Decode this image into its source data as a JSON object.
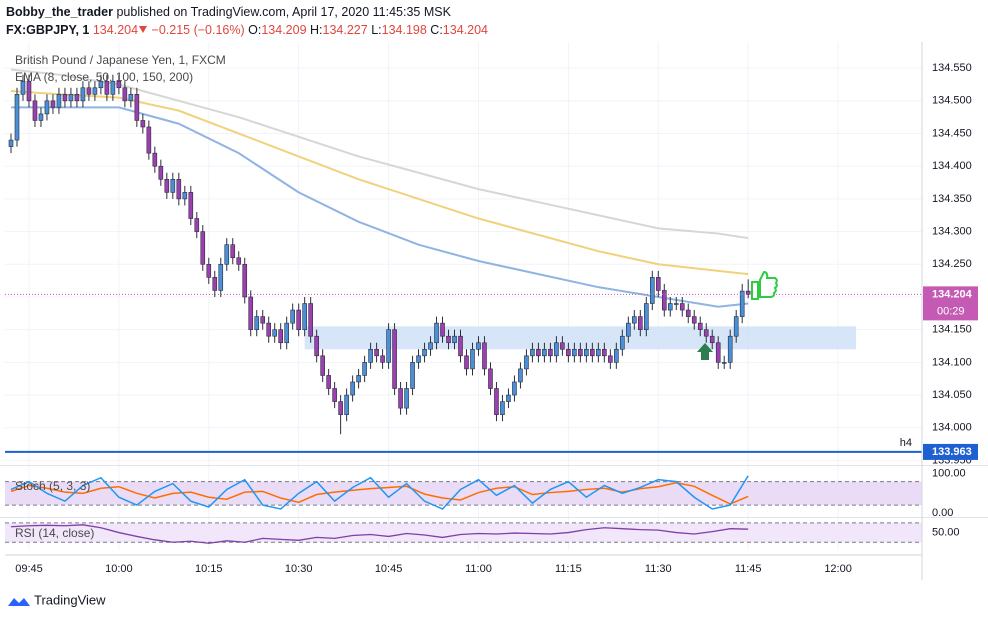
{
  "header": {
    "author": "Bobby_the_trader",
    "published": "published on TradingView.com, April 17, 2020 11:45:35 MSK",
    "symbol": "FX:GBPJPY, 1",
    "change": "−0.215 (−0.16%)",
    "o_label": "O:",
    "h_label": "H:",
    "l_label": "L:",
    "c_label": "C:"
  },
  "footer": {
    "brand": "TradingView"
  },
  "chart_data": {
    "type": "candlestick",
    "title": "British Pound / Japanese Yen, 1, FXCM",
    "indicator_label": "EMA (8, close, 50, 100, 150, 200)",
    "up_color": "#4a8fd8",
    "down_color": "#9c3fb0",
    "wick_color": "#2a2e39",
    "x": [
      582,
      583,
      584,
      585,
      586,
      587,
      588,
      589,
      590,
      591,
      592,
      593,
      594,
      595,
      596,
      597,
      598,
      599,
      600,
      601,
      602,
      603,
      604,
      605,
      606,
      607,
      608,
      609,
      610,
      611,
      612,
      613,
      614,
      615,
      616,
      617,
      618,
      619,
      620,
      621,
      622,
      623,
      624,
      625,
      626,
      627,
      628,
      629,
      630,
      631,
      632,
      633,
      634,
      635,
      636,
      637,
      638,
      639,
      640,
      641,
      642,
      643,
      644,
      645,
      646,
      647,
      648,
      649,
      650,
      651,
      652,
      653,
      654,
      655,
      656,
      657,
      658,
      659,
      660,
      661,
      662,
      663,
      664,
      665,
      666,
      667,
      668,
      669,
      670,
      671,
      672,
      673,
      674,
      675,
      676,
      677,
      678,
      679,
      680,
      681,
      682,
      683,
      684,
      685,
      686,
      687,
      688,
      689,
      690,
      691,
      692,
      693,
      694,
      695,
      696,
      697,
      698,
      699,
      700,
      701,
      702,
      703,
      704,
      705
    ],
    "open": [
      134.43,
      134.44,
      134.51,
      134.53,
      134.5,
      134.47,
      134.48,
      134.5,
      134.49,
      134.51,
      134.5,
      134.51,
      134.5,
      134.52,
      134.51,
      134.52,
      134.53,
      134.51,
      134.53,
      134.52,
      134.5,
      134.51,
      134.47,
      134.46,
      134.42,
      134.4,
      134.38,
      134.36,
      134.38,
      134.35,
      134.36,
      134.32,
      134.3,
      134.25,
      134.23,
      134.21,
      134.25,
      134.28,
      134.26,
      134.25,
      134.2,
      134.15,
      134.17,
      134.16,
      134.14,
      134.15,
      134.13,
      134.16,
      134.18,
      134.15,
      134.19,
      134.14,
      134.11,
      134.08,
      134.06,
      134.04,
      134.02,
      134.05,
      134.07,
      134.08,
      134.1,
      134.12,
      134.11,
      134.1,
      134.15,
      134.06,
      134.03,
      134.06,
      134.1,
      134.11,
      134.12,
      134.13,
      134.16,
      134.14,
      134.13,
      134.14,
      134.11,
      134.09,
      134.12,
      134.13,
      134.09,
      134.06,
      134.02,
      134.04,
      134.05,
      134.07,
      134.09,
      134.11,
      134.12,
      134.11,
      134.12,
      134.11,
      134.13,
      134.12,
      134.11,
      134.12,
      134.11,
      134.12,
      134.11,
      134.12,
      134.11,
      134.1,
      134.12,
      134.14,
      134.16,
      134.17,
      134.15,
      134.19,
      134.23,
      134.21,
      134.18,
      134.19,
      134.19,
      134.18,
      134.17,
      134.16,
      134.15,
      134.14,
      134.13,
      134.1,
      134.1,
      134.14,
      134.17,
      134.209
    ],
    "high": [
      134.45,
      134.52,
      134.54,
      134.54,
      134.51,
      134.49,
      134.51,
      134.51,
      134.52,
      134.52,
      134.52,
      134.52,
      134.53,
      134.53,
      134.53,
      134.54,
      134.54,
      134.54,
      134.54,
      134.53,
      134.52,
      134.52,
      134.48,
      134.47,
      134.43,
      134.41,
      134.39,
      134.39,
      134.39,
      134.37,
      134.37,
      134.33,
      134.31,
      134.26,
      134.24,
      134.26,
      134.29,
      134.29,
      134.27,
      134.26,
      134.21,
      134.18,
      134.18,
      134.17,
      134.16,
      134.16,
      134.17,
      134.19,
      134.19,
      134.2,
      134.2,
      134.15,
      134.12,
      134.09,
      134.07,
      134.05,
      134.06,
      134.08,
      134.09,
      134.11,
      134.13,
      134.13,
      134.12,
      134.16,
      134.16,
      134.07,
      134.07,
      134.11,
      134.12,
      134.13,
      134.14,
      134.17,
      134.17,
      134.15,
      134.15,
      134.15,
      134.12,
      134.13,
      134.14,
      134.14,
      134.1,
      134.07,
      134.05,
      134.06,
      134.08,
      134.1,
      134.12,
      134.13,
      134.13,
      134.13,
      134.13,
      134.14,
      134.14,
      134.13,
      134.13,
      134.13,
      134.13,
      134.13,
      134.13,
      134.13,
      134.12,
      134.13,
      134.15,
      134.17,
      134.18,
      134.18,
      134.2,
      134.24,
      134.24,
      134.22,
      134.2,
      134.2,
      134.2,
      134.19,
      134.18,
      134.17,
      134.16,
      134.15,
      134.14,
      134.11,
      134.15,
      134.18,
      134.22,
      134.227
    ],
    "low": [
      134.42,
      134.43,
      134.5,
      134.49,
      134.46,
      134.46,
      134.47,
      134.48,
      134.48,
      134.49,
      134.49,
      134.49,
      134.49,
      134.5,
      134.5,
      134.51,
      134.5,
      134.5,
      134.51,
      134.49,
      134.49,
      134.46,
      134.45,
      134.41,
      134.39,
      134.37,
      134.35,
      134.35,
      134.34,
      134.34,
      134.31,
      134.29,
      134.24,
      134.22,
      134.2,
      134.2,
      134.24,
      134.25,
      134.24,
      134.19,
      134.14,
      134.14,
      134.15,
      134.13,
      134.13,
      134.12,
      134.12,
      134.15,
      134.14,
      134.14,
      134.13,
      134.1,
      134.07,
      134.05,
      134.03,
      133.99,
      134.01,
      134.04,
      134.06,
      134.07,
      134.09,
      134.1,
      134.09,
      134.09,
      134.05,
      134.02,
      134.02,
      134.05,
      134.09,
      134.1,
      134.11,
      134.12,
      134.13,
      134.12,
      134.12,
      134.1,
      134.08,
      134.08,
      134.11,
      134.08,
      134.05,
      134.01,
      134.01,
      134.03,
      134.04,
      134.06,
      134.08,
      134.1,
      134.1,
      134.1,
      134.1,
      134.1,
      134.11,
      134.1,
      134.1,
      134.1,
      134.1,
      134.1,
      134.1,
      134.1,
      134.09,
      134.09,
      134.11,
      134.13,
      134.15,
      134.14,
      134.14,
      134.18,
      134.2,
      134.17,
      134.17,
      134.18,
      134.17,
      134.16,
      134.15,
      134.14,
      134.13,
      134.12,
      134.09,
      134.09,
      134.09,
      134.13,
      134.16,
      134.198
    ],
    "close": [
      134.44,
      134.51,
      134.53,
      134.5,
      134.47,
      134.48,
      134.5,
      134.49,
      134.51,
      134.5,
      134.51,
      134.5,
      134.52,
      134.51,
      134.52,
      134.53,
      134.51,
      134.53,
      134.52,
      134.5,
      134.51,
      134.47,
      134.46,
      134.42,
      134.4,
      134.38,
      134.36,
      134.38,
      134.35,
      134.36,
      134.32,
      134.3,
      134.25,
      134.23,
      134.21,
      134.25,
      134.28,
      134.26,
      134.25,
      134.2,
      134.15,
      134.17,
      134.16,
      134.14,
      134.15,
      134.13,
      134.16,
      134.18,
      134.15,
      134.19,
      134.14,
      134.11,
      134.08,
      134.06,
      134.04,
      134.02,
      134.05,
      134.07,
      134.08,
      134.1,
      134.12,
      134.11,
      134.1,
      134.15,
      134.06,
      134.03,
      134.06,
      134.1,
      134.11,
      134.12,
      134.13,
      134.16,
      134.14,
      134.13,
      134.14,
      134.11,
      134.09,
      134.12,
      134.13,
      134.09,
      134.06,
      134.02,
      134.04,
      134.05,
      134.07,
      134.09,
      134.11,
      134.12,
      134.11,
      134.12,
      134.11,
      134.13,
      134.12,
      134.11,
      134.12,
      134.11,
      134.12,
      134.11,
      134.12,
      134.11,
      134.1,
      134.12,
      134.14,
      134.16,
      134.17,
      134.15,
      134.19,
      134.23,
      134.21,
      134.18,
      134.19,
      134.19,
      134.18,
      134.17,
      134.16,
      134.15,
      134.14,
      134.13,
      134.1,
      134.1,
      134.14,
      134.17,
      134.209,
      134.204
    ],
    "xlim": [
      581,
      734
    ],
    "xticks": [
      {
        "value": 585,
        "label": "09:45"
      },
      {
        "value": 600,
        "label": "10:00"
      },
      {
        "value": 615,
        "label": "10:15"
      },
      {
        "value": 630,
        "label": "10:30"
      },
      {
        "value": 645,
        "label": "10:45"
      },
      {
        "value": 660,
        "label": "11:00"
      },
      {
        "value": 675,
        "label": "11:15"
      },
      {
        "value": 690,
        "label": "11:30"
      },
      {
        "value": 705,
        "label": "11:45"
      },
      {
        "value": 720,
        "label": "12:00"
      }
    ],
    "ylim": [
      133.943,
      134.59
    ],
    "yticks": [
      {
        "value": 134.55,
        "label": "134.550"
      },
      {
        "value": 134.5,
        "label": "134.500"
      },
      {
        "value": 134.45,
        "label": "134.450"
      },
      {
        "value": 134.4,
        "label": "134.400"
      },
      {
        "value": 134.35,
        "label": "134.350"
      },
      {
        "value": 134.3,
        "label": "134.300"
      },
      {
        "value": 134.25,
        "label": "134.250"
      },
      {
        "value": 134.2,
        "label": "134.200"
      },
      {
        "value": 134.15,
        "label": "134.150"
      },
      {
        "value": 134.1,
        "label": "134.100"
      },
      {
        "value": 134.05,
        "label": "134.050"
      },
      {
        "value": 134,
        "label": "134.000"
      },
      {
        "value": 133.95,
        "label": "133.950"
      }
    ],
    "grid": true,
    "ema_series": [
      {
        "color": "#d6d6d6",
        "x": [
          582,
          590,
          600,
          610,
          620,
          630,
          640,
          650,
          660,
          670,
          680,
          690,
          700,
          705
        ],
        "values": [
          134.548,
          134.54,
          134.525,
          134.5,
          134.475,
          134.445,
          134.415,
          134.39,
          134.365,
          134.345,
          134.325,
          134.305,
          134.297,
          134.29
        ]
      },
      {
        "color": "#f0d27a",
        "x": [
          582,
          590,
          600,
          610,
          620,
          630,
          640,
          650,
          660,
          670,
          680,
          690,
          700,
          705
        ],
        "values": [
          134.515,
          134.51,
          134.505,
          134.485,
          134.45,
          134.415,
          134.38,
          134.35,
          134.32,
          134.295,
          134.27,
          134.25,
          134.24,
          134.235
        ]
      },
      {
        "color": "#8fb4e3",
        "x": [
          582,
          590,
          600,
          610,
          620,
          630,
          640,
          650,
          660,
          670,
          680,
          690,
          700,
          705
        ],
        "values": [
          134.49,
          134.49,
          134.49,
          134.465,
          134.42,
          134.36,
          134.315,
          134.28,
          134.255,
          134.235,
          134.215,
          134.2,
          134.185,
          134.19
        ]
      }
    ],
    "zone": {
      "xlim": [
        631,
        723
      ],
      "ylim": [
        134.12,
        134.155
      ],
      "color": "#cfe0f7"
    },
    "level": {
      "value": 133.963,
      "label": "133.963",
      "note": "h4",
      "color": "#1e5fd1"
    },
    "last_price": {
      "value": 134.204,
      "countdown": "00:29",
      "color": "#c45ab3"
    },
    "stoch": {
      "title": "Stoch (5, 3, 3)",
      "ylim": [
        -8,
        120
      ],
      "yticks": [
        {
          "value": 100,
          "label": "100.00"
        },
        {
          "value": 0,
          "label": "0.00"
        }
      ],
      "bands": [
        20,
        80
      ],
      "k_color": "#2196f3",
      "d_color": "#ff6d00",
      "x": [
        582,
        585,
        588,
        591,
        594,
        597,
        600,
        603,
        606,
        609,
        612,
        615,
        618,
        621,
        624,
        627,
        630,
        633,
        636,
        639,
        642,
        645,
        648,
        651,
        654,
        657,
        660,
        663,
        666,
        669,
        672,
        675,
        678,
        681,
        684,
        687,
        690,
        693,
        696,
        699,
        702,
        705
      ],
      "k": [
        60,
        80,
        50,
        30,
        70,
        90,
        40,
        20,
        55,
        75,
        30,
        15,
        60,
        85,
        20,
        10,
        50,
        80,
        30,
        65,
        90,
        40,
        75,
        30,
        10,
        60,
        85,
        45,
        70,
        25,
        60,
        80,
        40,
        70,
        50,
        65,
        85,
        80,
        40,
        10,
        20,
        95
      ],
      "d": [
        55,
        70,
        63,
        53,
        50,
        63,
        67,
        50,
        38,
        50,
        53,
        40,
        35,
        53,
        55,
        38,
        27,
        47,
        53,
        58,
        62,
        65,
        68,
        48,
        38,
        33,
        52,
        63,
        67,
        47,
        52,
        55,
        60,
        63,
        53,
        62,
        67,
        77,
        68,
        45,
        23,
        42
      ]
    },
    "rsi": {
      "title": "RSI (14, close)",
      "ylim": [
        14,
        78
      ],
      "yticks": [
        {
          "value": 50,
          "label": "50.00"
        }
      ],
      "bands": [
        30,
        70
      ],
      "color": "#7e3fa8",
      "x": [
        582,
        585,
        588,
        591,
        594,
        597,
        600,
        603,
        606,
        609,
        612,
        615,
        618,
        621,
        624,
        627,
        630,
        633,
        636,
        639,
        642,
        645,
        648,
        651,
        654,
        657,
        660,
        663,
        666,
        669,
        672,
        675,
        678,
        681,
        684,
        687,
        690,
        693,
        696,
        699,
        702,
        705
      ],
      "values": [
        62,
        64,
        65,
        64,
        66,
        60,
        50,
        42,
        35,
        30,
        32,
        28,
        33,
        30,
        38,
        36,
        34,
        40,
        38,
        44,
        46,
        42,
        48,
        45,
        40,
        46,
        48,
        47,
        49,
        48,
        47,
        50,
        56,
        60,
        58,
        56,
        55,
        50,
        47,
        52,
        58,
        57
      ]
    }
  }
}
